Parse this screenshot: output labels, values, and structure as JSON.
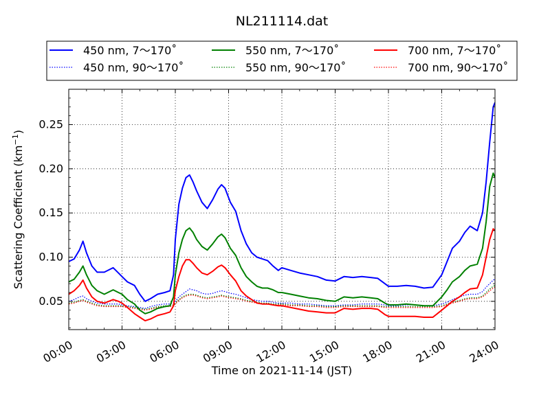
{
  "chart_data": {
    "type": "line",
    "title": "NL211114.dat",
    "xlabel": "Time on 2021-11-14 (JST)",
    "ylabel": "Scattering Coefficient (km",
    "ylabel_sup": "−1",
    "ylabel_end": ")",
    "xlim": [
      0,
      24
    ],
    "ylim": [
      0.018,
      0.29
    ],
    "grid": true,
    "legend_position": "top, outside the plot area (3 columns)",
    "x_ticks": [
      {
        "value": 0,
        "label": "00:00"
      },
      {
        "value": 3,
        "label": "03:00"
      },
      {
        "value": 6,
        "label": "06:00"
      },
      {
        "value": 9,
        "label": "09:00"
      },
      {
        "value": 12,
        "label": "12:00"
      },
      {
        "value": 15,
        "label": "15:00"
      },
      {
        "value": 18,
        "label": "18:00"
      },
      {
        "value": 21,
        "label": "21:00"
      },
      {
        "value": 24,
        "label": "24:00"
      }
    ],
    "y_ticks": [
      {
        "value": 0.05,
        "label": "0.05"
      },
      {
        "value": 0.1,
        "label": "0.10"
      },
      {
        "value": 0.15,
        "label": "0.15"
      },
      {
        "value": 0.2,
        "label": "0.20"
      },
      {
        "value": 0.25,
        "label": "0.25"
      }
    ],
    "x": [
      0,
      0.3,
      0.6,
      0.8,
      1.0,
      1.3,
      1.6,
      2.0,
      2.5,
      2.8,
      3.0,
      3.3,
      3.7,
      4.0,
      4.3,
      4.6,
      5.0,
      5.4,
      5.7,
      5.9,
      6.0,
      6.2,
      6.4,
      6.6,
      6.8,
      7.0,
      7.2,
      7.5,
      7.8,
      8.1,
      8.4,
      8.6,
      8.8,
      9.1,
      9.4,
      9.7,
      10.0,
      10.3,
      10.6,
      10.9,
      11.2,
      11.5,
      11.8,
      12.0,
      12.5,
      13.0,
      13.5,
      14.0,
      14.5,
      15.0,
      15.5,
      16.0,
      16.5,
      17.0,
      17.4,
      17.8,
      18.0,
      18.5,
      19.0,
      19.5,
      20.0,
      20.5,
      21.0,
      21.3,
      21.6,
      22.0,
      22.3,
      22.6,
      23.0,
      23.3,
      23.5,
      23.7,
      23.9,
      24.0
    ],
    "series": [
      {
        "name": "450 nm, 7～170˚",
        "color": "#0000ff",
        "dash": "solid",
        "values": [
          0.095,
          0.098,
          0.108,
          0.118,
          0.105,
          0.09,
          0.083,
          0.083,
          0.088,
          0.082,
          0.078,
          0.072,
          0.068,
          0.058,
          0.05,
          0.053,
          0.058,
          0.06,
          0.062,
          0.08,
          0.12,
          0.16,
          0.178,
          0.19,
          0.193,
          0.185,
          0.175,
          0.162,
          0.155,
          0.165,
          0.177,
          0.182,
          0.178,
          0.162,
          0.152,
          0.13,
          0.115,
          0.105,
          0.1,
          0.098,
          0.096,
          0.09,
          0.085,
          0.088,
          0.085,
          0.082,
          0.08,
          0.078,
          0.074,
          0.073,
          0.078,
          0.077,
          0.078,
          0.077,
          0.076,
          0.07,
          0.067,
          0.067,
          0.068,
          0.067,
          0.065,
          0.066,
          0.08,
          0.095,
          0.11,
          0.118,
          0.128,
          0.135,
          0.13,
          0.15,
          0.185,
          0.23,
          0.27,
          0.275
        ]
      },
      {
        "name": "450 nm, 90～170˚",
        "color": "#0000ff",
        "dash": "dotted",
        "values": [
          0.05,
          0.052,
          0.055,
          0.056,
          0.053,
          0.05,
          0.048,
          0.047,
          0.047,
          0.047,
          0.046,
          0.045,
          0.044,
          0.043,
          0.042,
          0.044,
          0.046,
          0.047,
          0.047,
          0.048,
          0.05,
          0.055,
          0.058,
          0.061,
          0.064,
          0.063,
          0.062,
          0.059,
          0.058,
          0.059,
          0.061,
          0.062,
          0.061,
          0.059,
          0.058,
          0.056,
          0.054,
          0.052,
          0.051,
          0.05,
          0.05,
          0.049,
          0.048,
          0.048,
          0.048,
          0.047,
          0.047,
          0.046,
          0.045,
          0.045,
          0.046,
          0.046,
          0.047,
          0.047,
          0.047,
          0.046,
          0.045,
          0.045,
          0.046,
          0.046,
          0.045,
          0.045,
          0.047,
          0.049,
          0.052,
          0.055,
          0.057,
          0.058,
          0.058,
          0.061,
          0.066,
          0.07,
          0.074,
          0.075
        ]
      },
      {
        "name": "550 nm, 7～170˚",
        "color": "#008000",
        "dash": "solid",
        "values": [
          0.072,
          0.075,
          0.083,
          0.09,
          0.08,
          0.068,
          0.062,
          0.058,
          0.063,
          0.06,
          0.058,
          0.052,
          0.047,
          0.04,
          0.036,
          0.038,
          0.042,
          0.044,
          0.045,
          0.055,
          0.08,
          0.105,
          0.12,
          0.13,
          0.133,
          0.128,
          0.12,
          0.112,
          0.108,
          0.115,
          0.123,
          0.126,
          0.122,
          0.11,
          0.102,
          0.088,
          0.078,
          0.072,
          0.067,
          0.065,
          0.065,
          0.063,
          0.06,
          0.06,
          0.058,
          0.056,
          0.054,
          0.053,
          0.051,
          0.05,
          0.055,
          0.054,
          0.055,
          0.054,
          0.053,
          0.048,
          0.046,
          0.046,
          0.047,
          0.046,
          0.045,
          0.045,
          0.055,
          0.063,
          0.072,
          0.078,
          0.085,
          0.09,
          0.092,
          0.11,
          0.14,
          0.18,
          0.195,
          0.19
        ]
      },
      {
        "name": "550 nm, 90～170˚",
        "color": "#008000",
        "dash": "dotted",
        "values": [
          0.048,
          0.049,
          0.051,
          0.052,
          0.05,
          0.048,
          0.046,
          0.045,
          0.045,
          0.045,
          0.045,
          0.044,
          0.043,
          0.042,
          0.041,
          0.042,
          0.044,
          0.045,
          0.045,
          0.046,
          0.048,
          0.052,
          0.055,
          0.057,
          0.058,
          0.058,
          0.057,
          0.055,
          0.054,
          0.055,
          0.056,
          0.057,
          0.056,
          0.055,
          0.054,
          0.053,
          0.051,
          0.05,
          0.049,
          0.048,
          0.048,
          0.047,
          0.047,
          0.047,
          0.046,
          0.046,
          0.045,
          0.045,
          0.044,
          0.044,
          0.045,
          0.045,
          0.045,
          0.045,
          0.045,
          0.044,
          0.044,
          0.044,
          0.044,
          0.044,
          0.044,
          0.044,
          0.045,
          0.047,
          0.049,
          0.051,
          0.053,
          0.054,
          0.054,
          0.056,
          0.06,
          0.064,
          0.067,
          0.068
        ]
      },
      {
        "name": "700 nm, 7～170˚",
        "color": "#ff0000",
        "dash": "solid",
        "values": [
          0.058,
          0.062,
          0.068,
          0.074,
          0.065,
          0.055,
          0.05,
          0.048,
          0.052,
          0.05,
          0.048,
          0.043,
          0.036,
          0.032,
          0.028,
          0.03,
          0.034,
          0.036,
          0.038,
          0.045,
          0.062,
          0.078,
          0.09,
          0.097,
          0.097,
          0.093,
          0.088,
          0.082,
          0.08,
          0.084,
          0.089,
          0.091,
          0.088,
          0.08,
          0.073,
          0.062,
          0.056,
          0.052,
          0.048,
          0.047,
          0.047,
          0.046,
          0.045,
          0.045,
          0.043,
          0.041,
          0.039,
          0.038,
          0.037,
          0.037,
          0.042,
          0.041,
          0.042,
          0.042,
          0.041,
          0.035,
          0.033,
          0.033,
          0.033,
          0.033,
          0.032,
          0.032,
          0.04,
          0.045,
          0.05,
          0.055,
          0.06,
          0.064,
          0.065,
          0.08,
          0.1,
          0.12,
          0.132,
          0.13
        ]
      },
      {
        "name": "700 nm, 90～170˚",
        "color": "#ff0000",
        "dash": "dotted",
        "values": [
          0.047,
          0.048,
          0.05,
          0.051,
          0.049,
          0.047,
          0.045,
          0.044,
          0.044,
          0.044,
          0.044,
          0.043,
          0.042,
          0.041,
          0.04,
          0.041,
          0.043,
          0.044,
          0.044,
          0.045,
          0.047,
          0.051,
          0.054,
          0.056,
          0.057,
          0.057,
          0.056,
          0.054,
          0.053,
          0.054,
          0.055,
          0.056,
          0.055,
          0.054,
          0.053,
          0.052,
          0.05,
          0.049,
          0.048,
          0.047,
          0.047,
          0.046,
          0.046,
          0.046,
          0.045,
          0.045,
          0.044,
          0.044,
          0.043,
          0.043,
          0.044,
          0.044,
          0.044,
          0.044,
          0.044,
          0.043,
          0.043,
          0.043,
          0.043,
          0.043,
          0.043,
          0.043,
          0.044,
          0.046,
          0.048,
          0.05,
          0.052,
          0.053,
          0.053,
          0.055,
          0.058,
          0.062,
          0.065,
          0.066
        ]
      }
    ]
  }
}
